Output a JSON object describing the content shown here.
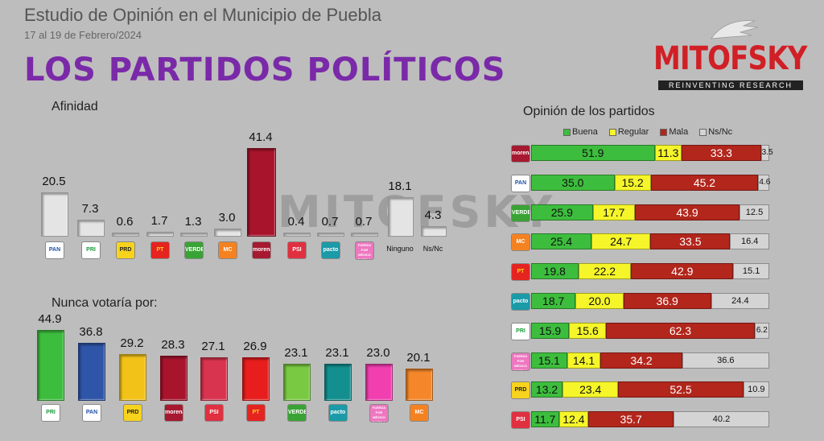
{
  "header": {
    "title": "Estudio de Opinión en el Municipio de Puebla",
    "date": "17 al 19 de Febrero/2024",
    "main_title": "LOS PARTIDOS POLÍTICOS"
  },
  "logo": {
    "brand": "MITOFSKY",
    "tagline": "REINVENTING RESEARCH"
  },
  "watermark": "MITOFSKY",
  "party_logos": {
    "PAN": {
      "text": "PAN",
      "bg": "#ffffff",
      "fg": "#1f4fa8"
    },
    "PRI": {
      "text": "PRI",
      "bg": "#ffffff",
      "fg": "#1a9a3a"
    },
    "PRD": {
      "text": "PRD",
      "bg": "#f7d31e",
      "fg": "#222222"
    },
    "PT": {
      "text": "PT",
      "bg": "#e52420",
      "fg": "#f7d31e"
    },
    "VERDE": {
      "text": "VERDE",
      "bg": "#3aa335",
      "fg": "#ffffff"
    },
    "MC": {
      "text": "MC",
      "bg": "#f58220",
      "fg": "#ffffff"
    },
    "morena": {
      "text": "morena",
      "bg": "#a71930",
      "fg": "#ffffff"
    },
    "PSI": {
      "text": "PSI",
      "bg": "#e03040",
      "fg": "#ffffff"
    },
    "pacto": {
      "text": "pacto",
      "bg": "#1b9aa8",
      "fg": "#ffffff"
    },
    "FxMP": {
      "text": "FUERZA POR MÉXICO PUEBLA",
      "bg": "#ee77c0",
      "fg": "#ffffff"
    }
  },
  "chart_data": [
    {
      "type": "bar",
      "title": "Afinidad",
      "categories": [
        "PAN",
        "PRI",
        "PRD",
        "PT",
        "VERDE",
        "MC",
        "morena",
        "PSI",
        "pacto",
        "FxMP",
        "Ninguno",
        "Ns/Nc"
      ],
      "category_labels": [
        "",
        "",
        "",
        "",
        "",
        "",
        "",
        "",
        "",
        "",
        "Ninguno",
        "Ns/Nc"
      ],
      "values": [
        20.5,
        7.3,
        0.6,
        1.7,
        1.3,
        3.0,
        41.4,
        0.4,
        0.7,
        0.7,
        18.1,
        4.3
      ],
      "value_labels": [
        "20.5",
        "7.3",
        "0.6",
        "1.7",
        "1.3",
        "3.0",
        "41.4",
        "0.4",
        "0.7",
        "0.7",
        "18.1",
        "4.3"
      ],
      "colors": [
        "#e4e4e4",
        "#e4e4e4",
        "#e4e4e4",
        "#e4e4e4",
        "#e4e4e4",
        "#e4e4e4",
        "#a8142c",
        "#e4e4e4",
        "#e4e4e4",
        "#e4e4e4",
        "#e4e4e4",
        "#e4e4e4"
      ],
      "ylim": [
        0,
        45
      ]
    },
    {
      "type": "bar",
      "title": "Nunca votaría por:",
      "categories": [
        "PRI",
        "PAN",
        "PRD",
        "morena",
        "PSI",
        "PT",
        "VERDE",
        "pacto",
        "FxMP",
        "MC"
      ],
      "values": [
        44.9,
        36.8,
        29.2,
        28.3,
        27.1,
        26.9,
        23.1,
        23.1,
        23.0,
        20.1
      ],
      "value_labels": [
        "44.9",
        "36.8",
        "29.2",
        "28.3",
        "27.1",
        "26.9",
        "23.1",
        "23.1",
        "23.0",
        "20.1"
      ],
      "colors": [
        "#3dbd3d",
        "#2f55a8",
        "#f2c218",
        "#a8142c",
        "#d9344f",
        "#e81d1d",
        "#7ac943",
        "#138f8f",
        "#f23fb0",
        "#f5872a"
      ],
      "ylim": [
        0,
        50
      ]
    },
    {
      "type": "bar",
      "subtype": "stacked-horizontal",
      "title": "Opinión de los partidos",
      "legend": [
        "Buena",
        "Regular",
        "Mala",
        "Ns/Nc"
      ],
      "legend_position": "top",
      "colors": [
        "#3dbd3d",
        "#f5f52a",
        "#b2261c",
        "#d4d4d4"
      ],
      "categories": [
        "morena",
        "PAN",
        "VERDE",
        "MC",
        "PT",
        "pacto",
        "PRI",
        "FxMP",
        "PRD",
        "PSI"
      ],
      "series": [
        {
          "name": "Buena",
          "values": [
            51.9,
            35.0,
            25.9,
            25.4,
            19.8,
            18.7,
            15.9,
            15.1,
            13.2,
            11.7
          ]
        },
        {
          "name": "Regular",
          "values": [
            11.3,
            15.2,
            17.7,
            24.7,
            22.2,
            20.0,
            15.6,
            14.1,
            23.4,
            12.4
          ]
        },
        {
          "name": "Mala",
          "values": [
            33.3,
            45.2,
            43.9,
            33.5,
            42.9,
            36.9,
            62.3,
            34.2,
            52.5,
            35.7
          ]
        },
        {
          "name": "Ns/Nc",
          "values": [
            3.5,
            4.6,
            12.5,
            16.4,
            15.1,
            24.4,
            6.2,
            36.6,
            10.9,
            40.2
          ]
        }
      ],
      "value_labels": [
        [
          "51.9",
          "11.3",
          "33.3",
          "3.5"
        ],
        [
          "35.0",
          "15.2",
          "45.2",
          "4.6"
        ],
        [
          "25.9",
          "17.7",
          "43.9",
          "12.5"
        ],
        [
          "25.4",
          "24.7",
          "33.5",
          "16.4"
        ],
        [
          "19.8",
          "22.2",
          "42.9",
          "15.1"
        ],
        [
          "18.7",
          "20.0",
          "36.9",
          "24.4"
        ],
        [
          "15.9",
          "15.6",
          "62.3",
          "6.2"
        ],
        [
          "15.1",
          "14.1",
          "34.2",
          "36.6"
        ],
        [
          "13.2",
          "23.4",
          "52.5",
          "10.9"
        ],
        [
          "11.7",
          "12.4",
          "35.7",
          "40.2"
        ]
      ],
      "xlim": [
        0,
        100
      ]
    }
  ]
}
